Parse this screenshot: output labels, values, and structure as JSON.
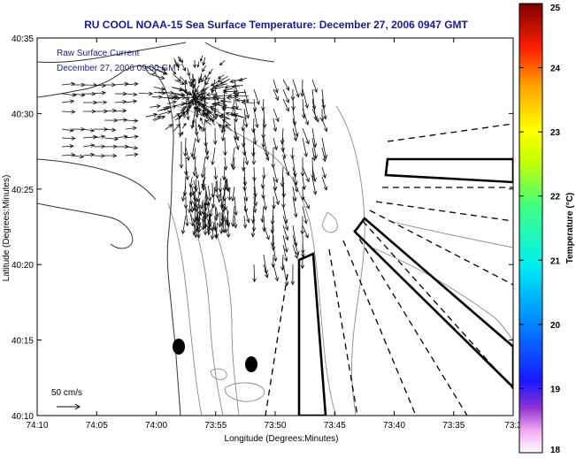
{
  "title": "RU COOL  NOAA-15  Sea Surface Temperature:  December 27, 2006 0947 GMT",
  "legend": {
    "line1": "Raw Surface Current",
    "line2": "December 27, 2006 09:00 GMT"
  },
  "scale": {
    "label": "50 cm/s"
  },
  "axes": {
    "xlabel": "Longitude (Degrees:Minutes)",
    "ylabel": "Latitude (Degrees:Minutes)",
    "xticks": [
      "74:10",
      "74:05",
      "74:00",
      "73:55",
      "73:50",
      "73:45",
      "73:40",
      "73:35",
      "73:3"
    ],
    "yticks": [
      "40:35",
      "40:30",
      "40:25",
      "40:20",
      "40:15",
      "40:10"
    ]
  },
  "colorbar": {
    "label": "Temperature (°C)",
    "min": 18,
    "max": 25,
    "ticks": [
      "25",
      "24",
      "23",
      "22",
      "21",
      "20",
      "19",
      "18"
    ]
  },
  "colors": {
    "title": "#1a1a9a",
    "legend_text": "#1a1a9a",
    "coastline": "#333333",
    "contour": "#8a8a8a",
    "arrows": "#111111"
  }
}
